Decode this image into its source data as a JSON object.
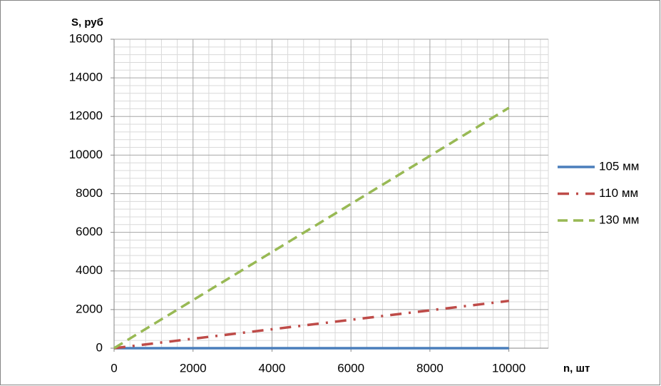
{
  "chart_data": {
    "type": "line",
    "x_label": "n, шт",
    "y_label": "S, руб",
    "x": [
      0,
      10000
    ],
    "series": [
      {
        "name": "105 мм",
        "color": "#4a7ebb",
        "style": "solid",
        "values": [
          0,
          0
        ]
      },
      {
        "name": "110 мм",
        "color": "#be4b48",
        "style": "dash-dot",
        "values": [
          0,
          2450
        ]
      },
      {
        "name": "130 мм",
        "color": "#98b954",
        "style": "dash",
        "values": [
          0,
          12450
        ]
      }
    ],
    "xlim": [
      0,
      11000
    ],
    "xticks": [
      0,
      2000,
      4000,
      6000,
      8000,
      10000
    ],
    "ylim": [
      0,
      16000
    ],
    "yticks": [
      0,
      2000,
      4000,
      6000,
      8000,
      10000,
      12000,
      14000,
      16000
    ],
    "grid": true,
    "minor_grid": true,
    "legend": "right"
  }
}
